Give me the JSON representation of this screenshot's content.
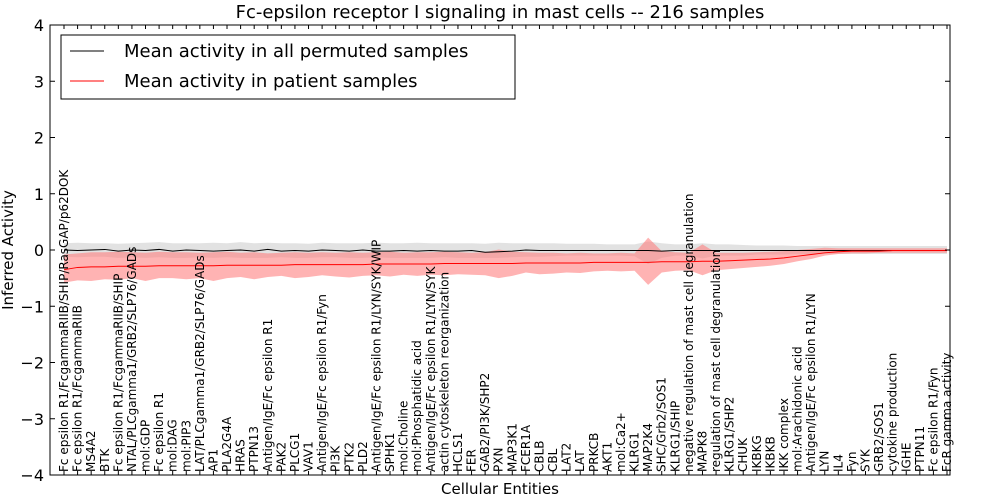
{
  "chart_data": {
    "type": "line",
    "title": "Fc-epsilon receptor I signaling in mast cells -- 216 samples",
    "xlabel": "Cellular Entities",
    "ylabel": "Inferred Activity",
    "ylim": [
      -4,
      4
    ],
    "yticks": [
      "4",
      "3",
      "2",
      "1",
      "0",
      "−1",
      "−2",
      "−3",
      "−4"
    ],
    "legend_position": "top-left",
    "categories": [
      "Fc epsilon R1/FcgammaRIIB/SHIP/RasGAP/p62DOK",
      "Fc epsilon R1/FcgammaRIIB",
      "MS4A2",
      "BTK",
      "Fc epsilon R1/FcgammaRIIB/SHIP",
      "NTAL/PLCgamma1/GRB2/SLP76/GADs",
      "mol:GDP",
      "Fc epsilon R1",
      "mol:DAG",
      "mol:PIP3",
      "LAT/PLCgamma1/GRB2/SLP76/GADs",
      "AP1",
      "PLA2G4A",
      "HRAS",
      "PTPN13",
      "Antigen/IgE/Fc epsilon R1",
      "PAK2",
      "PLCG1",
      "VAV1",
      "Antigen/IgE/Fc epsilon R1/Fyn",
      "PI3K",
      "PTK2",
      "PLD2",
      "Antigen/IgE/Fc epsilon R1/LYN/SYK/WIP",
      "SPHK1",
      "mol:Choline",
      "mol:Phosphatidic acid",
      "Antigen/IgE/Fc epsilon R1/LYN/SYK",
      "actin cytoskeleton reorganization",
      "HCLS1",
      "FER",
      "GAB2/PI3K/SHP2",
      "PXN",
      "MAP3K1",
      "FCER1A",
      "CBLB",
      "CBL",
      "LAT2",
      "LAT",
      "PRKCB",
      "AKT1",
      "mol:Ca2+",
      "KLRG1",
      "MAP2K4",
      "SHC/Grb2/SOS1",
      "KLRG1/SHIP",
      "negative regulation of mast cell degranulation",
      "MAPK8",
      "regulation of mast cell degranulation",
      "KLRG1/SHP2",
      "CHUK",
      "IKBKG",
      "IKBKB",
      "IKK complex",
      "mol:Arachidonic acid",
      "Antigen/IgE/Fc epsilon R1/LYN",
      "LYN",
      "IL4",
      "Fyn",
      "SYK",
      "GRB2/SOS1",
      "cytokine production",
      "IGHE",
      "PTPN11",
      "Fc epsilon R1/Fyn",
      "FcR gamma activity"
    ],
    "series": [
      {
        "name": "Mean activity in all permuted samples",
        "color": "#000000",
        "values": [
          0.0,
          -0.01,
          0.0,
          0.01,
          -0.02,
          0.0,
          -0.01,
          0.01,
          -0.02,
          0.0,
          -0.01,
          -0.02,
          -0.01,
          0.0,
          -0.02,
          0.01,
          -0.02,
          -0.01,
          -0.02,
          0.0,
          -0.01,
          -0.02,
          0.0,
          -0.02,
          -0.02,
          -0.01,
          -0.02,
          -0.01,
          -0.02,
          -0.02,
          -0.01,
          -0.04,
          -0.03,
          -0.02,
          0.0,
          -0.01,
          -0.01,
          -0.01,
          -0.01,
          -0.01,
          -0.01,
          -0.01,
          -0.01,
          -0.01,
          -0.02,
          -0.01,
          -0.01,
          -0.01,
          -0.01,
          -0.01,
          -0.01,
          -0.01,
          -0.01,
          -0.01,
          -0.01,
          -0.01,
          -0.01,
          -0.01,
          -0.01,
          -0.01,
          -0.01,
          -0.01,
          -0.01,
          -0.01,
          -0.01,
          -0.01
        ]
      },
      {
        "name": "Mean activity in patient samples",
        "color": "#ff0000",
        "values": [
          -0.35,
          -0.31,
          -0.3,
          -0.3,
          -0.29,
          -0.29,
          -0.29,
          -0.28,
          -0.28,
          -0.28,
          -0.28,
          -0.28,
          -0.27,
          -0.27,
          -0.27,
          -0.27,
          -0.27,
          -0.26,
          -0.26,
          -0.26,
          -0.26,
          -0.26,
          -0.26,
          -0.25,
          -0.25,
          -0.25,
          -0.25,
          -0.25,
          -0.24,
          -0.24,
          -0.24,
          -0.24,
          -0.24,
          -0.24,
          -0.23,
          -0.23,
          -0.23,
          -0.23,
          -0.23,
          -0.22,
          -0.22,
          -0.22,
          -0.22,
          -0.22,
          -0.21,
          -0.21,
          -0.21,
          -0.2,
          -0.2,
          -0.19,
          -0.18,
          -0.17,
          -0.16,
          -0.14,
          -0.11,
          -0.08,
          -0.05,
          -0.03,
          -0.02,
          -0.02,
          -0.02,
          -0.01,
          -0.01,
          -0.01,
          -0.01,
          -0.01
        ]
      }
    ],
    "bands": [
      {
        "series": "Mean activity in all permuted samples",
        "color": "#bfbfbf",
        "lower": [
          -0.12,
          -0.13,
          -0.12,
          -0.12,
          -0.14,
          -0.13,
          -0.14,
          -0.13,
          -0.14,
          -0.14,
          -0.13,
          -0.14,
          -0.13,
          -0.14,
          -0.14,
          -0.14,
          -0.13,
          -0.14,
          -0.14,
          -0.13,
          -0.13,
          -0.14,
          -0.14,
          -0.13,
          -0.14,
          -0.14,
          -0.14,
          -0.14,
          -0.13,
          -0.14,
          -0.14,
          -0.14,
          -0.14,
          -0.13,
          -0.12,
          -0.12,
          -0.11,
          -0.1,
          -0.1,
          -0.1,
          -0.1,
          -0.1,
          -0.11,
          -0.25,
          -0.14,
          -0.1,
          -0.1,
          -0.15,
          -0.1,
          -0.1,
          -0.1,
          -0.08,
          -0.08,
          -0.08,
          -0.07,
          -0.07,
          -0.07,
          -0.07,
          -0.07,
          -0.07,
          -0.07,
          -0.07,
          -0.07,
          -0.07,
          -0.07,
          -0.07
        ],
        "upper": [
          0.12,
          0.13,
          0.12,
          0.12,
          0.11,
          0.12,
          0.13,
          0.14,
          0.12,
          0.12,
          0.12,
          0.13,
          0.12,
          0.14,
          0.12,
          0.13,
          0.12,
          0.12,
          0.11,
          0.13,
          0.12,
          0.12,
          0.12,
          0.13,
          0.12,
          0.12,
          0.13,
          0.12,
          0.12,
          0.12,
          0.12,
          0.11,
          0.13,
          0.12,
          0.12,
          0.12,
          0.12,
          0.11,
          0.11,
          0.11,
          0.1,
          0.1,
          0.1,
          0.15,
          0.12,
          0.1,
          0.1,
          0.12,
          0.1,
          0.1,
          0.09,
          0.08,
          0.08,
          0.08,
          0.07,
          0.07,
          0.07,
          0.07,
          0.07,
          0.07,
          0.07,
          0.07,
          0.07,
          0.07,
          0.07,
          0.07
        ]
      },
      {
        "series": "Mean activity in patient samples",
        "color": "#ff8080",
        "lower": [
          -0.58,
          -0.54,
          -0.55,
          -0.52,
          -0.53,
          -0.5,
          -0.55,
          -0.5,
          -0.5,
          -0.52,
          -0.5,
          -0.55,
          -0.5,
          -0.48,
          -0.52,
          -0.48,
          -0.46,
          -0.5,
          -0.48,
          -0.45,
          -0.47,
          -0.49,
          -0.46,
          -0.45,
          -0.47,
          -0.44,
          -0.46,
          -0.44,
          -0.45,
          -0.43,
          -0.44,
          -0.45,
          -0.5,
          -0.46,
          -0.4,
          -0.43,
          -0.42,
          -0.4,
          -0.41,
          -0.38,
          -0.37,
          -0.38,
          -0.37,
          -0.62,
          -0.4,
          -0.37,
          -0.36,
          -0.45,
          -0.36,
          -0.34,
          -0.32,
          -0.3,
          -0.28,
          -0.25,
          -0.2,
          -0.16,
          -0.1,
          -0.07,
          -0.06,
          -0.06,
          -0.05,
          -0.05,
          -0.05,
          -0.05,
          -0.05,
          -0.05
        ],
        "upper": [
          -0.08,
          -0.06,
          -0.04,
          -0.04,
          -0.03,
          -0.04,
          -0.05,
          -0.03,
          -0.04,
          -0.04,
          -0.05,
          -0.04,
          -0.03,
          -0.05,
          -0.04,
          -0.06,
          -0.05,
          -0.04,
          -0.05,
          -0.04,
          -0.05,
          -0.04,
          -0.05,
          -0.04,
          -0.03,
          -0.05,
          -0.04,
          -0.04,
          -0.03,
          -0.04,
          -0.05,
          -0.04,
          0.01,
          -0.03,
          -0.04,
          -0.05,
          -0.05,
          -0.06,
          -0.05,
          -0.06,
          -0.06,
          -0.05,
          -0.06,
          0.22,
          -0.02,
          -0.04,
          -0.05,
          0.1,
          -0.05,
          -0.05,
          -0.05,
          -0.04,
          -0.03,
          -0.02,
          0.0,
          0.02,
          0.04,
          0.03,
          0.03,
          0.03,
          0.03,
          0.03,
          0.03,
          0.03,
          0.03,
          0.03
        ]
      }
    ]
  }
}
